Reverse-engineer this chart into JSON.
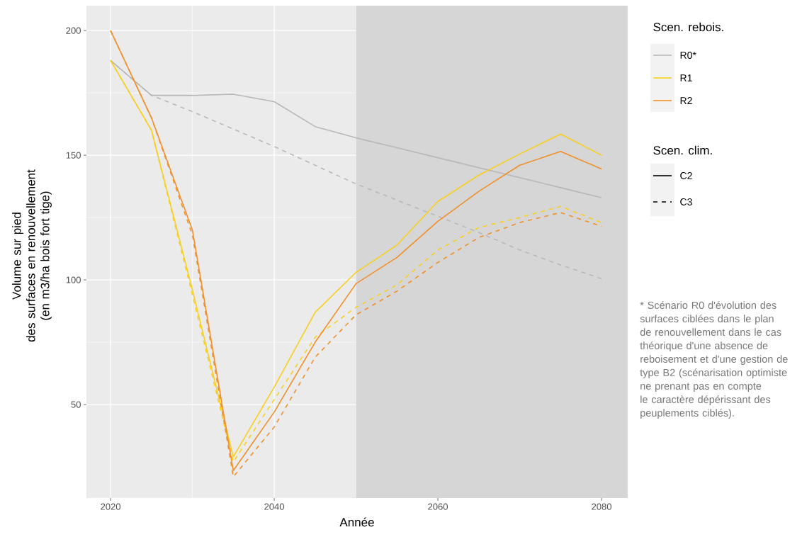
{
  "chart_data": {
    "type": "line",
    "xlabel": "Année",
    "ylabel": "Volume sur pied\ndes surfaces en renouvellement\n(en m3/ha bois fort tige)",
    "legend_title": "Scen. rebois.",
    "legend": "right",
    "grid": true,
    "x": [
      2020,
      2025,
      2030,
      2035,
      2040,
      2045,
      2050,
      2055,
      2060,
      2065,
      2070,
      2075,
      2080
    ],
    "xlim": [
      2017.05,
      2083.2
    ],
    "xticks": [
      2020,
      2040,
      2060,
      2080
    ],
    "ylim": [
      12.5,
      210
    ],
    "yticks": [
      50,
      100,
      150,
      200
    ],
    "bands": [
      {
        "axis": "x",
        "from": 2050,
        "to": 2083.2,
        "color": "#d6d6d6"
      }
    ],
    "series": [
      {
        "name": "R0*",
        "color": "#b8b8b8",
        "line_style": "solid",
        "values": [
          188,
          174,
          174,
          174.5,
          171.5,
          161.5,
          157,
          153,
          149,
          145,
          141,
          137,
          133
        ]
      },
      {
        "color": "#b8b8b8",
        "line_style": "dashed",
        "values": [
          188,
          174,
          167.5,
          160.5,
          153.5,
          146,
          138.5,
          132,
          125.5,
          119,
          112,
          106,
          100.5
        ]
      },
      {
        "name": "R1",
        "color": "#f7cf1c",
        "line_style": "solid",
        "values": [
          188,
          160,
          96,
          29,
          57,
          87,
          103,
          114,
          131.5,
          142,
          150.5,
          158.5,
          150
        ]
      },
      {
        "color": "#f7cf1c",
        "line_style": "dashed",
        "values": [
          188,
          160,
          94,
          27,
          52,
          77,
          89,
          98,
          112,
          121,
          125,
          129.5,
          123
        ]
      },
      {
        "name": "R2",
        "color": "#f0902a",
        "line_style": "solid",
        "values": [
          200,
          165,
          120,
          23.5,
          47,
          75,
          98.5,
          109,
          123.5,
          135.5,
          146,
          151.5,
          144.5
        ]
      },
      {
        "color": "#f0902a",
        "line_style": "dashed",
        "values": [
          200,
          165,
          118,
          21,
          41,
          69,
          86,
          95.5,
          107,
          117,
          123,
          127,
          121.5
        ]
      }
    ],
    "annotations": [
      "Scen. clim.",
      "C2",
      "C3",
      "* Scénario R0 d'évolution des surfaces ciblées dans le plan de renouvellement dans le cas théorique d'une absence de reboisement et d'une gestion de type B2 (scénarisation optimiste ne prenant pas en compte le caractère dépérissant des peuplements ciblés)."
    ]
  }
}
